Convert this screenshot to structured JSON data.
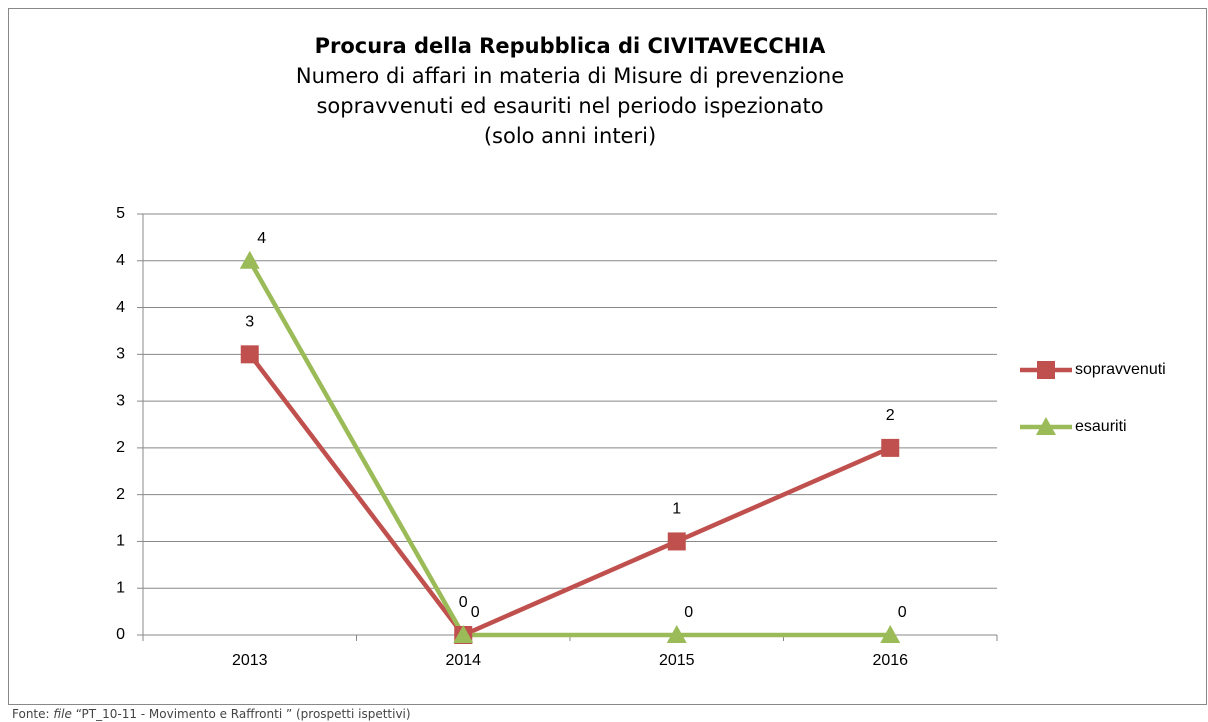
{
  "chart_data": {
    "type": "line",
    "title": "Procura della Repubblica di CIVITAVECCHIA",
    "subtitle": [
      "Numero di affari in materia di Misure di prevenzione",
      "sopravvenuti ed esauriti nel periodo ispezionato",
      "(solo anni interi)"
    ],
    "categories": [
      "2013",
      "2014",
      "2015",
      "2016"
    ],
    "series": [
      {
        "name": "sopravvenuti",
        "color": "#c0504d",
        "marker": "square",
        "values": [
          3,
          0,
          1,
          2
        ]
      },
      {
        "name": "esauriti",
        "color": "#9bbb59",
        "marker": "triangle",
        "values": [
          4,
          0,
          0,
          0
        ]
      }
    ],
    "ylim": [
      0,
      4.5
    ],
    "yticks": [
      0,
      {
        "value": 0.5,
        "label": "1"
      },
      1,
      {
        "value": 1.5,
        "label": "2"
      },
      2,
      {
        "value": 2.5,
        "label": "3"
      },
      3,
      {
        "value": 3.5,
        "label": "4"
      },
      4,
      {
        "value": 4.5,
        "label": "5"
      }
    ],
    "grid": true,
    "legend": "right",
    "note": {
      "prefix": "Fonte:",
      "italic": "file",
      "text": "“PT_10-11 - Movimento e Raffronti ” (prospetti ispettivi)"
    }
  }
}
